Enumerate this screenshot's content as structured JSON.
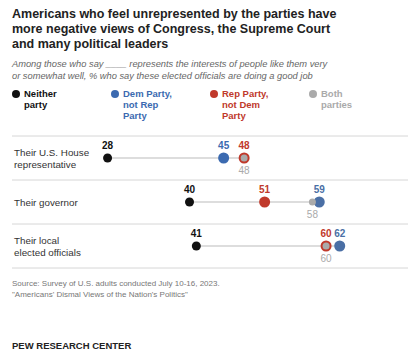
{
  "chart_data": {
    "type": "dot",
    "title": "Americans who feel unrepresented by the parties have\nmore negative views of Congress, the Supreme Court\nand many political leaders",
    "subtitle": "Among those who say ____ represents the interests of people like them very\nor somewhat well, % who say these elected officials are doing a good job",
    "source": "Source: Survey of U.S. adults conducted July 10-16, 2023.\n\"Americans' Dismal Views of the Nation's Politics\"",
    "footer": "PEW RESEARCH CENTER",
    "categories": [
      "Their U.S. House\nrepresentative",
      "Their governor",
      "Their local\nelected officials"
    ],
    "series": [
      {
        "name": "Neither\nparty",
        "color": "#111111",
        "values": [
          28,
          40,
          41
        ]
      },
      {
        "name": "Dem Party,\nnot Rep\nParty",
        "color": "#3b6ab0",
        "colors": [
          "#3b6ab0",
          "#4a6fa5",
          "#4a6fa5"
        ],
        "values": [
          45,
          59,
          62
        ]
      },
      {
        "name": "Rep Party,\nnot Dem\nParty",
        "color": "#c0392b",
        "values": [
          48,
          51,
          60
        ]
      },
      {
        "name": "Both\nparties",
        "color": "#aaaaaa",
        "values": [
          48,
          58,
          60
        ]
      }
    ],
    "xlim": [
      14,
      72
    ],
    "tick_labels": false,
    "grid": true,
    "data_labels": true
  }
}
